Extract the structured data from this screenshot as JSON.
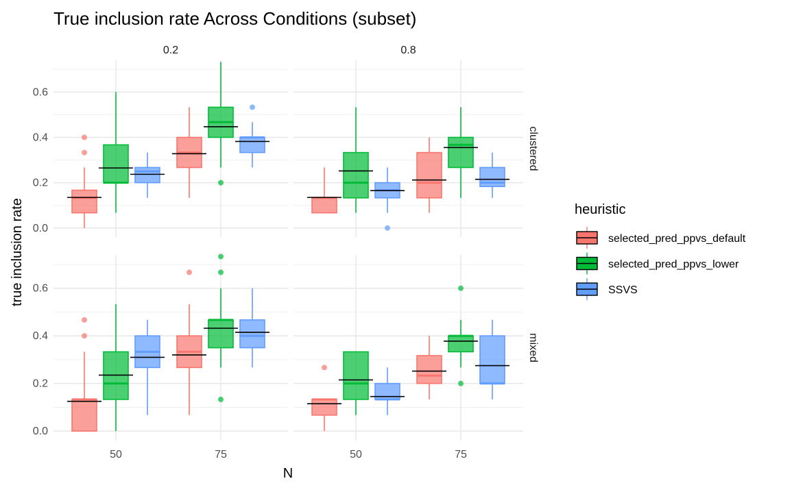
{
  "chart_data": {
    "type": "boxplot",
    "title": "True inclusion rate Across Conditions (subset)",
    "xlabel": "N",
    "ylabel": "true inclusion rate",
    "x_categories": [
      "50",
      "75"
    ],
    "col_facets": [
      "0.2",
      "0.8"
    ],
    "row_facets": [
      "clustered",
      "mixed"
    ],
    "ylim": [
      -0.04,
      0.74
    ],
    "y_ticks": [
      0.0,
      0.2,
      0.4,
      0.6
    ],
    "y_tick_labels": [
      "0.0",
      "0.2",
      "0.4",
      "0.6"
    ],
    "legend": {
      "title": "heuristic",
      "position": "right",
      "entries": [
        {
          "name": "selected_pred_ppvs_default",
          "color": "#F8766D"
        },
        {
          "name": "selected_pred_ppvs_lower",
          "color": "#00BA38"
        },
        {
          "name": "SSVS",
          "color": "#619CFF"
        }
      ]
    },
    "grid": true,
    "panels": [
      {
        "row": "clustered",
        "col": "0.2",
        "boxes": [
          {
            "N": "50",
            "heuristic": "selected_pred_ppvs_default",
            "lower_whisker": 0.0,
            "q1": 0.067,
            "median": 0.133,
            "q3": 0.167,
            "upper_whisker": 0.267,
            "mean": 0.135,
            "outliers": [
              0.333,
              0.4
            ]
          },
          {
            "N": "50",
            "heuristic": "selected_pred_ppvs_lower",
            "lower_whisker": 0.067,
            "q1": 0.2,
            "median": 0.2,
            "q3": 0.367,
            "upper_whisker": 0.6,
            "mean": 0.265,
            "outliers": []
          },
          {
            "N": "50",
            "heuristic": "SSVS",
            "lower_whisker": 0.133,
            "q1": 0.2,
            "median": 0.25,
            "q3": 0.267,
            "upper_whisker": 0.333,
            "mean": 0.237,
            "outliers": []
          },
          {
            "N": "75",
            "heuristic": "selected_pred_ppvs_default",
            "lower_whisker": 0.133,
            "q1": 0.267,
            "median": 0.333,
            "q3": 0.4,
            "upper_whisker": 0.533,
            "mean": 0.328,
            "outliers": []
          },
          {
            "N": "75",
            "heuristic": "selected_pred_ppvs_lower",
            "lower_whisker": 0.267,
            "q1": 0.4,
            "median": 0.467,
            "q3": 0.533,
            "upper_whisker": 0.733,
            "mean": 0.447,
            "outliers": [
              0.2
            ]
          },
          {
            "N": "75",
            "heuristic": "SSVS",
            "lower_whisker": 0.267,
            "q1": 0.333,
            "median": 0.4,
            "q3": 0.4,
            "upper_whisker": 0.467,
            "mean": 0.382,
            "outliers": [
              0.533
            ]
          }
        ]
      },
      {
        "row": "clustered",
        "col": "0.8",
        "boxes": [
          {
            "N": "50",
            "heuristic": "selected_pred_ppvs_default",
            "lower_whisker": 0.067,
            "q1": 0.067,
            "median": 0.133,
            "q3": 0.133,
            "upper_whisker": 0.267,
            "mean": 0.135,
            "outliers": []
          },
          {
            "N": "50",
            "heuristic": "selected_pred_ppvs_lower",
            "lower_whisker": 0.067,
            "q1": 0.133,
            "median": 0.2,
            "q3": 0.333,
            "upper_whisker": 0.533,
            "mean": 0.252,
            "outliers": []
          },
          {
            "N": "50",
            "heuristic": "SSVS",
            "lower_whisker": 0.067,
            "q1": 0.133,
            "median": 0.167,
            "q3": 0.2,
            "upper_whisker": 0.267,
            "mean": 0.165,
            "outliers": [
              0.0
            ]
          },
          {
            "N": "75",
            "heuristic": "selected_pred_ppvs_default",
            "lower_whisker": 0.067,
            "q1": 0.133,
            "median": 0.2,
            "q3": 0.333,
            "upper_whisker": 0.4,
            "mean": 0.212,
            "outliers": []
          },
          {
            "N": "75",
            "heuristic": "selected_pred_ppvs_lower",
            "lower_whisker": 0.133,
            "q1": 0.267,
            "median": 0.367,
            "q3": 0.4,
            "upper_whisker": 0.533,
            "mean": 0.355,
            "outliers": []
          },
          {
            "N": "75",
            "heuristic": "SSVS",
            "lower_whisker": 0.133,
            "q1": 0.183,
            "median": 0.2,
            "q3": 0.267,
            "upper_whisker": 0.333,
            "mean": 0.215,
            "outliers": []
          }
        ]
      },
      {
        "row": "mixed",
        "col": "0.2",
        "boxes": [
          {
            "N": "50",
            "heuristic": "selected_pred_ppvs_default",
            "lower_whisker": 0.0,
            "q1": 0.0,
            "median": 0.133,
            "q3": 0.133,
            "upper_whisker": 0.333,
            "mean": 0.125,
            "outliers": [
              0.4,
              0.467
            ]
          },
          {
            "N": "50",
            "heuristic": "selected_pred_ppvs_lower",
            "lower_whisker": 0.0,
            "q1": 0.133,
            "median": 0.2,
            "q3": 0.333,
            "upper_whisker": 0.533,
            "mean": 0.235,
            "outliers": []
          },
          {
            "N": "50",
            "heuristic": "SSVS",
            "lower_whisker": 0.067,
            "q1": 0.267,
            "median": 0.333,
            "q3": 0.4,
            "upper_whisker": 0.467,
            "mean": 0.31,
            "outliers": []
          },
          {
            "N": "75",
            "heuristic": "selected_pred_ppvs_default",
            "lower_whisker": 0.067,
            "q1": 0.267,
            "median": 0.333,
            "q3": 0.4,
            "upper_whisker": 0.533,
            "mean": 0.32,
            "outliers": [
              0.667
            ]
          },
          {
            "N": "75",
            "heuristic": "selected_pred_ppvs_lower",
            "lower_whisker": 0.267,
            "q1": 0.35,
            "median": 0.467,
            "q3": 0.467,
            "upper_whisker": 0.6,
            "mean": 0.432,
            "outliers": [
              0.133,
              0.667,
              0.733
            ]
          },
          {
            "N": "75",
            "heuristic": "SSVS",
            "lower_whisker": 0.267,
            "q1": 0.35,
            "median": 0.4,
            "q3": 0.467,
            "upper_whisker": 0.6,
            "mean": 0.415,
            "outliers": []
          }
        ]
      },
      {
        "row": "mixed",
        "col": "0.8",
        "boxes": [
          {
            "N": "50",
            "heuristic": "selected_pred_ppvs_default",
            "lower_whisker": 0.0,
            "q1": 0.067,
            "median": 0.133,
            "q3": 0.133,
            "upper_whisker": 0.133,
            "mean": 0.115,
            "outliers": [
              0.267
            ]
          },
          {
            "N": "50",
            "heuristic": "selected_pred_ppvs_lower",
            "lower_whisker": 0.067,
            "q1": 0.133,
            "median": 0.2,
            "q3": 0.333,
            "upper_whisker": 0.333,
            "mean": 0.215,
            "outliers": []
          },
          {
            "N": "50",
            "heuristic": "SSVS",
            "lower_whisker": 0.067,
            "q1": 0.133,
            "median": 0.133,
            "q3": 0.2,
            "upper_whisker": 0.267,
            "mean": 0.145,
            "outliers": []
          },
          {
            "N": "75",
            "heuristic": "selected_pred_ppvs_default",
            "lower_whisker": 0.133,
            "q1": 0.2,
            "median": 0.233,
            "q3": 0.317,
            "upper_whisker": 0.4,
            "mean": 0.252,
            "outliers": []
          },
          {
            "N": "75",
            "heuristic": "selected_pred_ppvs_lower",
            "lower_whisker": 0.267,
            "q1": 0.333,
            "median": 0.4,
            "q3": 0.4,
            "upper_whisker": 0.467,
            "mean": 0.378,
            "outliers": [
              0.2,
              0.6
            ]
          },
          {
            "N": "75",
            "heuristic": "SSVS",
            "lower_whisker": 0.133,
            "q1": 0.2,
            "median": 0.2,
            "q3": 0.4,
            "upper_whisker": 0.467,
            "mean": 0.275,
            "outliers": []
          }
        ]
      }
    ]
  }
}
